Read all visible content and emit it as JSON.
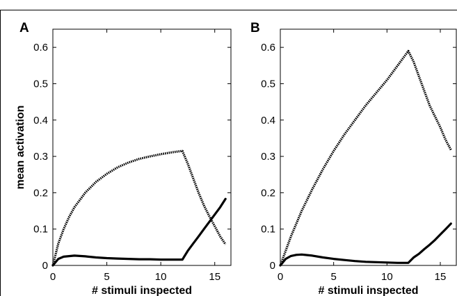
{
  "chart_data": [
    {
      "type": "line",
      "panel_label": "A",
      "xlabel": "# stimuli inspected",
      "ylabel": "mean activation",
      "xlim": [
        0,
        16.5
      ],
      "ylim": [
        0,
        0.65
      ],
      "xticks": [
        0,
        5,
        10,
        15
      ],
      "yticks": [
        0,
        0.1,
        0.2,
        0.3,
        0.4,
        0.5,
        0.6
      ],
      "grid": false,
      "series": [
        {
          "style": "dotted-thick",
          "color": "#000000",
          "x": [
            0,
            0.5,
            1,
            1.5,
            2,
            3,
            4,
            5,
            6,
            7,
            8,
            9,
            10,
            11,
            12,
            12.5,
            13,
            13.5,
            14,
            14.5,
            15,
            15.5,
            16
          ],
          "y": [
            0,
            0.06,
            0.1,
            0.133,
            0.16,
            0.2,
            0.23,
            0.252,
            0.27,
            0.283,
            0.293,
            0.3,
            0.306,
            0.311,
            0.315,
            0.28,
            0.24,
            0.2,
            0.165,
            0.135,
            0.108,
            0.08,
            0.058
          ]
        },
        {
          "style": "solid-thick",
          "color": "#000000",
          "x": [
            0,
            0.5,
            1,
            2,
            3,
            4,
            5,
            6,
            7,
            8,
            9,
            10,
            11,
            12,
            12.5,
            13,
            13.5,
            14,
            14.5,
            15,
            15.5,
            16
          ],
          "y": [
            0,
            0.018,
            0.024,
            0.027,
            0.025,
            0.022,
            0.02,
            0.019,
            0.018,
            0.017,
            0.017,
            0.016,
            0.016,
            0.016,
            0.04,
            0.06,
            0.08,
            0.1,
            0.12,
            0.14,
            0.16,
            0.183
          ]
        }
      ]
    },
    {
      "type": "line",
      "panel_label": "B",
      "xlabel": "# stimuli inspected",
      "ylabel": "",
      "xlim": [
        0,
        16.5
      ],
      "ylim": [
        0,
        0.65
      ],
      "xticks": [
        0,
        5,
        10,
        15
      ],
      "yticks": [
        0,
        0.1,
        0.2,
        0.3,
        0.4,
        0.5,
        0.6
      ],
      "grid": false,
      "series": [
        {
          "style": "dotted-thick",
          "color": "#000000",
          "x": [
            0,
            1,
            2,
            3,
            4,
            5,
            6,
            7,
            8,
            9,
            10,
            11,
            12,
            12.5,
            13,
            13.5,
            14,
            14.5,
            15,
            15.5,
            16
          ],
          "y": [
            0,
            0.08,
            0.15,
            0.21,
            0.265,
            0.315,
            0.36,
            0.4,
            0.44,
            0.475,
            0.51,
            0.55,
            0.59,
            0.56,
            0.52,
            0.48,
            0.44,
            0.41,
            0.38,
            0.345,
            0.318
          ]
        },
        {
          "style": "solid-thick",
          "color": "#000000",
          "x": [
            0,
            0.5,
            1,
            1.5,
            2,
            3,
            4,
            5,
            6,
            7,
            8,
            9,
            10,
            11,
            12,
            12.5,
            13,
            13.5,
            14,
            14.5,
            15,
            15.5,
            16
          ],
          "y": [
            0,
            0.018,
            0.026,
            0.029,
            0.03,
            0.027,
            0.022,
            0.018,
            0.015,
            0.012,
            0.01,
            0.009,
            0.008,
            0.007,
            0.007,
            0.022,
            0.032,
            0.045,
            0.057,
            0.07,
            0.085,
            0.1,
            0.115
          ]
        }
      ]
    }
  ]
}
